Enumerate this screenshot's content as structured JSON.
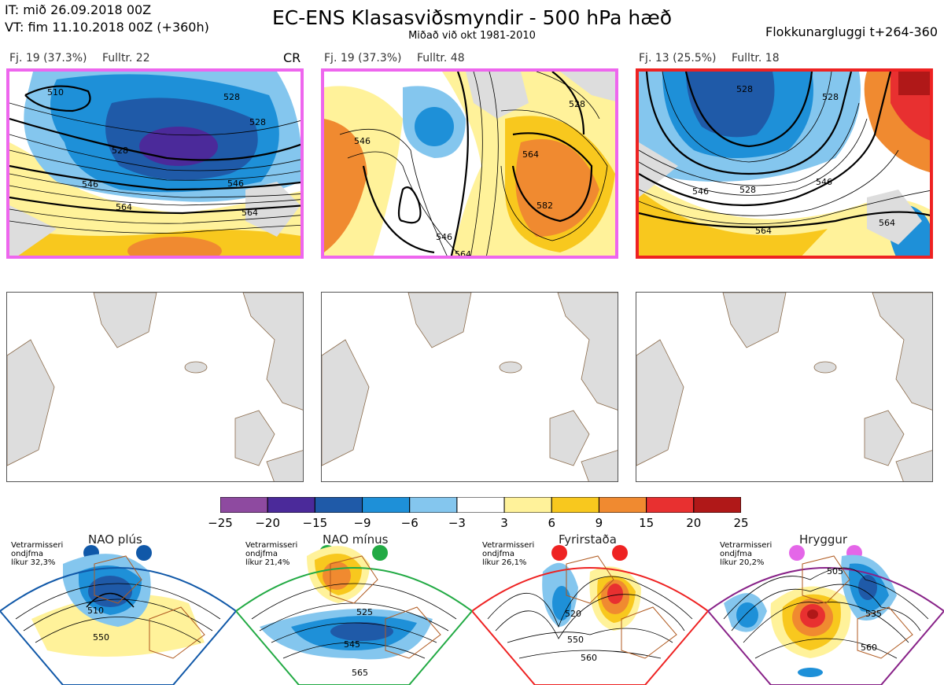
{
  "header": {
    "init_time": "IT: mið 26.09.2018 00Z",
    "valid_time": "VT: fim 11.10.2018 00Z  (+360h)",
    "title": "EC-ENS Klasasviðsmyndir - 500 hPa hæð",
    "subtitle": "Miðað við okt 1981-2010",
    "window": "Flokkunargluggi t+264-360"
  },
  "panels": [
    {
      "count": "Fj. 19 (37.3%)",
      "fulltr": "Fulltr. 22",
      "tag": "CR",
      "frame_color": "#ee66ee",
      "contour_labels": [
        "510",
        "528",
        "528",
        "528",
        "546",
        "546",
        "564",
        "564"
      ]
    },
    {
      "count": "Fj. 19 (37.3%)",
      "fulltr": "Fulltr. 48",
      "frame_color": "#ee66ee",
      "contour_labels": [
        "546",
        "564",
        "582",
        "528",
        "546",
        "564"
      ]
    },
    {
      "count": "Fj. 13 (25.5%)",
      "fulltr": "Fulltr. 18",
      "frame_color": "#ee2222",
      "contour_labels": [
        "546",
        "528",
        "546",
        "564",
        "564",
        "528",
        "528"
      ]
    }
  ],
  "colorbar": {
    "ticks": [
      "−25",
      "−20",
      "−15",
      "−9",
      "−6",
      "−3",
      "3",
      "6",
      "9",
      "15",
      "20",
      "25"
    ],
    "colors": [
      "#8e4aa0",
      "#4b2a9a",
      "#1f5aa8",
      "#1e90d8",
      "#84c6ee",
      "#ffffff",
      "#fff29a",
      "#f8c81e",
      "#f08a30",
      "#e83030",
      "#b01818"
    ]
  },
  "regimes": [
    {
      "name": "NAO plús",
      "note": [
        "Vetrarmisseri",
        "ondjfma",
        "líkur 32,3%"
      ],
      "color": "#1058a8",
      "labels": [
        "510",
        "550"
      ]
    },
    {
      "name": "NAO mínus",
      "note": [
        "Vetrarmisseri",
        "ondjfma",
        "líkur 21,4%"
      ],
      "color": "#22aa44",
      "labels": [
        "525",
        "545",
        "565"
      ]
    },
    {
      "name": "Fyrirstaða",
      "note": [
        "Vetrarmisseri",
        "ondjfma",
        "líkur 26,1%"
      ],
      "color": "#ee2222",
      "labels": [
        "520",
        "550",
        "560"
      ]
    },
    {
      "name": "Hryggur",
      "note": [
        "Vetrarmisseri",
        "ondjfma",
        "líkur 20,2%"
      ],
      "color": "#e466e8",
      "labels": [
        "505",
        "535",
        "560"
      ]
    }
  ]
}
